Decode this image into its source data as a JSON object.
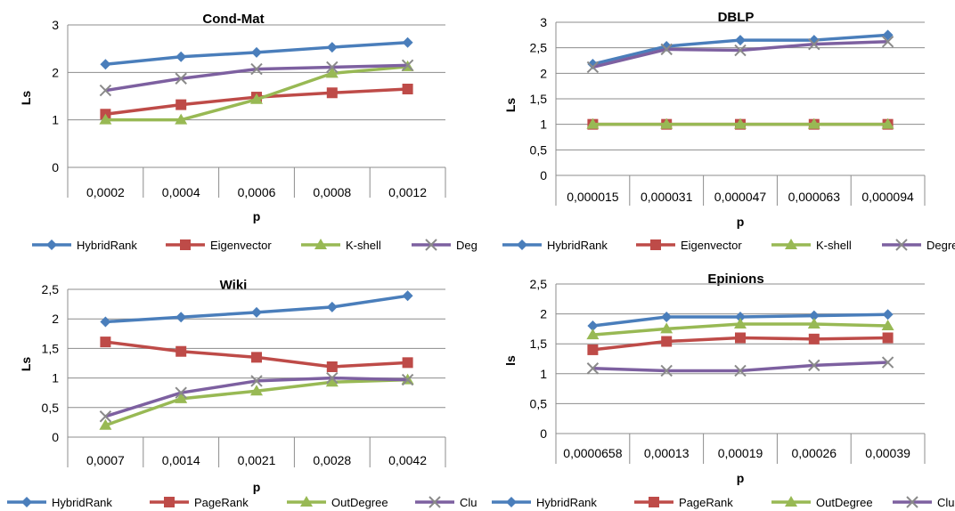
{
  "chart_data": [
    {
      "type": "line",
      "title": "Cond-Mat",
      "xlabel": "p",
      "ylabel": "Ls",
      "categories": [
        "0,0002",
        "0,0004",
        "0,0006",
        "0,0008",
        "0,0012"
      ],
      "ylim": [
        0,
        3
      ],
      "yticks": [
        "0",
        "1",
        "2",
        "3"
      ],
      "grid": true,
      "legend": "bottom",
      "series": [
        {
          "name": "HybridRank",
          "color": "#4a7ebb",
          "marker": "diamond",
          "values": [
            2.17,
            2.33,
            2.42,
            2.53,
            2.63
          ]
        },
        {
          "name": "Eigenvector",
          "color": "#be4b48",
          "marker": "square",
          "values": [
            1.12,
            1.32,
            1.48,
            1.57,
            1.65
          ]
        },
        {
          "name": "K-shell",
          "color": "#98b954",
          "marker": "triangle",
          "values": [
            1.0,
            1.0,
            1.43,
            1.98,
            2.12
          ]
        },
        {
          "name": "Degree",
          "color": "#7d60a0",
          "marker": "x",
          "values": [
            1.62,
            1.87,
            2.07,
            2.11,
            2.15
          ]
        }
      ]
    },
    {
      "type": "line",
      "title": "DBLP",
      "xlabel": "p",
      "ylabel": "Ls",
      "categories": [
        "0,000015",
        "0,000031",
        "0,000047",
        "0,000063",
        "0,000094"
      ],
      "ylim": [
        0,
        3
      ],
      "yticks": [
        "0",
        "0,5",
        "1",
        "1,5",
        "2",
        "2,5",
        "3"
      ],
      "grid": true,
      "legend": "bottom",
      "series": [
        {
          "name": "HybridRank",
          "color": "#4a7ebb",
          "marker": "diamond",
          "values": [
            2.18,
            2.53,
            2.65,
            2.65,
            2.75
          ]
        },
        {
          "name": "Eigenvector",
          "color": "#be4b48",
          "marker": "square",
          "values": [
            1.0,
            1.0,
            1.0,
            1.0,
            1.0
          ]
        },
        {
          "name": "K-shell",
          "color": "#98b954",
          "marker": "triangle",
          "values": [
            1.0,
            1.0,
            1.0,
            1.0,
            1.0
          ]
        },
        {
          "name": "Degree",
          "color": "#7d60a0",
          "marker": "x",
          "values": [
            2.12,
            2.47,
            2.45,
            2.57,
            2.62
          ]
        }
      ]
    },
    {
      "type": "line",
      "title": "Wiki",
      "xlabel": "p",
      "ylabel": "Ls",
      "categories": [
        "0,0007",
        "0,0014",
        "0,0021",
        "0,0028",
        "0,0042"
      ],
      "ylim": [
        0,
        2.5
      ],
      "yticks": [
        "0",
        "0,5",
        "1",
        "1,5",
        "2",
        "2,5"
      ],
      "grid": true,
      "legend": "bottom",
      "series": [
        {
          "name": "HybridRank",
          "color": "#4a7ebb",
          "marker": "diamond",
          "values": [
            1.95,
            2.03,
            2.11,
            2.2,
            2.39
          ]
        },
        {
          "name": "PageRank",
          "color": "#be4b48",
          "marker": "square",
          "values": [
            1.61,
            1.45,
            1.35,
            1.19,
            1.26
          ]
        },
        {
          "name": "OutDegree",
          "color": "#98b954",
          "marker": "triangle",
          "values": [
            0.2,
            0.65,
            0.78,
            0.93,
            0.97
          ]
        },
        {
          "name": "ClusterRank",
          "color": "#7d60a0",
          "marker": "x",
          "values": [
            0.35,
            0.75,
            0.95,
            1.0,
            0.97
          ]
        }
      ]
    },
    {
      "type": "line",
      "title": "Epinions",
      "xlabel": "p",
      "ylabel": "ls",
      "categories": [
        "0,0000658",
        "0,00013",
        "0,00019",
        "0,00026",
        "0,00039"
      ],
      "ylim": [
        0,
        2.5
      ],
      "yticks": [
        "0",
        "0,5",
        "1",
        "1,5",
        "2",
        "2,5"
      ],
      "grid": true,
      "legend": "bottom",
      "series": [
        {
          "name": "HybridRank",
          "color": "#4a7ebb",
          "marker": "diamond",
          "values": [
            1.8,
            1.95,
            1.95,
            1.97,
            1.99
          ]
        },
        {
          "name": "PageRank",
          "color": "#be4b48",
          "marker": "square",
          "values": [
            1.4,
            1.54,
            1.6,
            1.58,
            1.6
          ]
        },
        {
          "name": "OutDegree",
          "color": "#98b954",
          "marker": "triangle",
          "values": [
            1.65,
            1.75,
            1.83,
            1.83,
            1.8
          ]
        },
        {
          "name": "ClusterRank",
          "color": "#7d60a0",
          "marker": "x",
          "values": [
            1.09,
            1.05,
            1.05,
            1.14,
            1.19
          ]
        }
      ]
    }
  ]
}
